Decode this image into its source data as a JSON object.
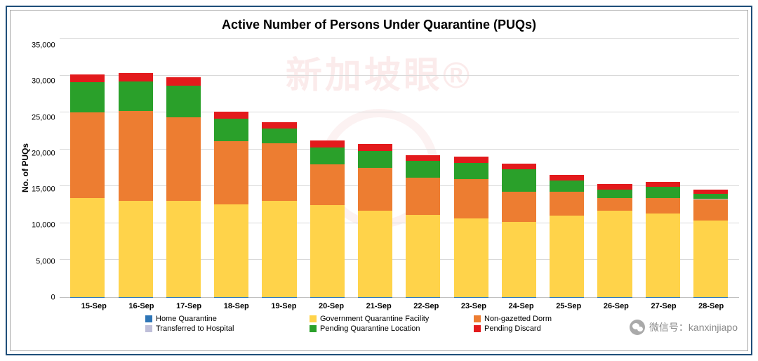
{
  "chart": {
    "type": "stacked-bar",
    "title": "Active Number of Persons Under Quarantine (PUQs)",
    "title_fontsize": 18,
    "ylabel": "No. of PUQs",
    "ylabel_fontsize": 12,
    "ylim": [
      0,
      35000
    ],
    "ytick_step": 5000,
    "yticks": [
      "0",
      "5,000",
      "10,000",
      "15,000",
      "20,000",
      "25,000",
      "30,000",
      "35,000"
    ],
    "grid_color": "#d9d9d9",
    "axis_color": "#bfbfbf",
    "background_color": "#ffffff",
    "bar_width": 0.72,
    "x_label_fontsize": 11,
    "legend_fontsize": 11,
    "categories": [
      "15-Sep",
      "16-Sep",
      "17-Sep",
      "18-Sep",
      "19-Sep",
      "20-Sep",
      "21-Sep",
      "22-Sep",
      "23-Sep",
      "24-Sep",
      "25-Sep",
      "26-Sep",
      "27-Sep",
      "28-Sep"
    ],
    "series": [
      {
        "key": "home",
        "label": "Home  Quarantine",
        "color": "#2e75b6"
      },
      {
        "key": "gqf",
        "label": "Government Quarantine Facility",
        "color": "#ffd34a"
      },
      {
        "key": "dorm",
        "label": "Non-gazetted Dorm",
        "color": "#ed7d31"
      },
      {
        "key": "hospital",
        "label": "Transferred to Hospital",
        "color": "#bfbfd9"
      },
      {
        "key": "pending",
        "label": "Pending Quarantine Location",
        "color": "#2aa02a"
      },
      {
        "key": "discard",
        "label": "Pending Discard",
        "color": "#e31a1c"
      }
    ],
    "data": [
      {
        "home": 40,
        "gqf": 13300,
        "dorm": 11600,
        "hospital": 30,
        "pending": 4100,
        "discard": 1000
      },
      {
        "home": 40,
        "gqf": 13000,
        "dorm": 12100,
        "hospital": 30,
        "pending": 4000,
        "discard": 1100
      },
      {
        "home": 40,
        "gqf": 13000,
        "dorm": 11200,
        "hospital": 30,
        "pending": 4300,
        "discard": 1100
      },
      {
        "home": 30,
        "gqf": 12500,
        "dorm": 8500,
        "hospital": 30,
        "pending": 3000,
        "discard": 1000
      },
      {
        "home": 30,
        "gqf": 13000,
        "dorm": 7700,
        "hospital": 30,
        "pending": 2000,
        "discard": 900
      },
      {
        "home": 30,
        "gqf": 12400,
        "dorm": 5500,
        "hospital": 30,
        "pending": 2200,
        "discard": 1000
      },
      {
        "home": 30,
        "gqf": 11600,
        "dorm": 5800,
        "hospital": 30,
        "pending": 2300,
        "discard": 900
      },
      {
        "home": 30,
        "gqf": 11100,
        "dorm": 5000,
        "hospital": 30,
        "pending": 2200,
        "discard": 800
      },
      {
        "home": 30,
        "gqf": 10600,
        "dorm": 5300,
        "hospital": 30,
        "pending": 2200,
        "discard": 800
      },
      {
        "home": 30,
        "gqf": 10100,
        "dorm": 4100,
        "hospital": 30,
        "pending": 3000,
        "discard": 800
      },
      {
        "home": 30,
        "gqf": 11000,
        "dorm": 3200,
        "hospital": 30,
        "pending": 1500,
        "discard": 700
      },
      {
        "home": 30,
        "gqf": 11600,
        "dorm": 1700,
        "hospital": 30,
        "pending": 1200,
        "discard": 700
      },
      {
        "home": 30,
        "gqf": 11300,
        "dorm": 2000,
        "hospital": 30,
        "pending": 1500,
        "discard": 700
      },
      {
        "home": 30,
        "gqf": 10300,
        "dorm": 2900,
        "hospital": 30,
        "pending": 700,
        "discard": 600
      }
    ]
  },
  "watermark": {
    "cn_text": "新加坡眼®",
    "wechat_label": "微信号：kanxinjiapo"
  }
}
